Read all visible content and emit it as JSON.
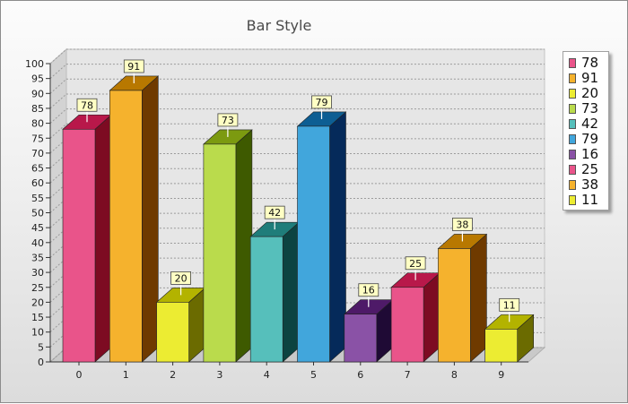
{
  "chart_data": {
    "type": "bar",
    "title": "Bar Style",
    "xlabel": "",
    "ylabel": "",
    "categories": [
      "0",
      "1",
      "2",
      "3",
      "4",
      "5",
      "6",
      "7",
      "8",
      "9"
    ],
    "values": [
      78,
      91,
      20,
      73,
      42,
      79,
      16,
      25,
      38,
      11
    ],
    "ylim": [
      0,
      100
    ],
    "ytick_step": 5,
    "grid": true,
    "style": "3d",
    "legend_position": "right",
    "legend_entries": [
      "78",
      "91",
      "20",
      "73",
      "42",
      "79",
      "16",
      "25",
      "38",
      "11"
    ],
    "data_labels": [
      "78",
      "91",
      "20",
      "73",
      "42",
      "79",
      "16",
      "25",
      "38",
      "11"
    ],
    "colors": [
      {
        "front": "#e9548a",
        "side": "#7d0b22",
        "top": "#b8184a"
      },
      {
        "front": "#f5b22d",
        "side": "#6f3a00",
        "top": "#b87800"
      },
      {
        "front": "#ecec32",
        "side": "#6b6b00",
        "top": "#b3b300"
      },
      {
        "front": "#badb4c",
        "side": "#3e5a00",
        "top": "#7c9a10"
      },
      {
        "front": "#56bfbb",
        "side": "#0c4341",
        "top": "#1f7d7a"
      },
      {
        "front": "#41a6dc",
        "side": "#052a5a",
        "top": "#0d5e93"
      },
      {
        "front": "#8a52a6",
        "side": "#1f0a35",
        "top": "#4e1a68"
      },
      {
        "front": "#e9548a",
        "side": "#7d0b22",
        "top": "#b8184a"
      },
      {
        "front": "#f5b22d",
        "side": "#6f3a00",
        "top": "#b87800"
      },
      {
        "front": "#ecec32",
        "side": "#6b6b00",
        "top": "#b3b300"
      }
    ]
  }
}
